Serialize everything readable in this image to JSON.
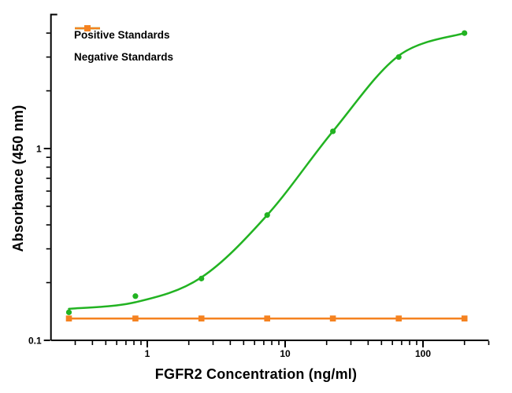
{
  "figure": {
    "background": "#ffffff",
    "axis_color": "#000000"
  },
  "chart_data": {
    "type": "line",
    "title": "",
    "xlabel": "FGFR2 Concentration (ng/ml)",
    "ylabel": "Absorbance (450 nm)",
    "x_scale": "log",
    "y_scale": "log",
    "xlim": [
      0.2,
      300
    ],
    "ylim": [
      0.1,
      5
    ],
    "grid": false,
    "legend_position": "top-left-inside",
    "x_major_ticks": [
      1,
      10,
      100
    ],
    "x_major_tick_labels": [
      "1",
      "10",
      "100"
    ],
    "x_minor_ticks": [
      0.3,
      0.4,
      0.5,
      0.6,
      0.7,
      0.8,
      0.9,
      2,
      3,
      4,
      5,
      6,
      7,
      8,
      9,
      20,
      30,
      40,
      50,
      60,
      70,
      80,
      90,
      200,
      300
    ],
    "y_major_ticks": [
      1,
      0.1
    ],
    "y_major_tick_labels": [
      "1",
      "0.1"
    ],
    "y_minor_ticks": [
      0.2,
      0.3,
      0.4,
      0.5,
      0.6,
      0.7,
      0.8,
      0.9,
      2,
      3,
      4
    ],
    "x": [
      0.27,
      0.82,
      2.47,
      7.41,
      22.2,
      66.7,
      200
    ],
    "series": [
      {
        "name": "Positive Standards",
        "color": "#22b322",
        "marker": "circle",
        "values": [
          0.14,
          0.17,
          0.21,
          0.45,
          1.23,
          3.0,
          4.0
        ],
        "fit_curve": [
          [
            0.27,
            0.146
          ],
          [
            0.82,
            0.158
          ],
          [
            2.47,
            0.213
          ],
          [
            7.41,
            0.45
          ],
          [
            22.2,
            1.23
          ],
          [
            66.7,
            3.05
          ],
          [
            200,
            4.0
          ]
        ]
      },
      {
        "name": "Negative Standards",
        "color": "#f58220",
        "marker": "square",
        "values": [
          0.13,
          0.13,
          0.13,
          0.13,
          0.13,
          0.13,
          0.13
        ],
        "fit_curve": [
          [
            0.27,
            0.13
          ],
          [
            200,
            0.13
          ]
        ]
      }
    ]
  }
}
